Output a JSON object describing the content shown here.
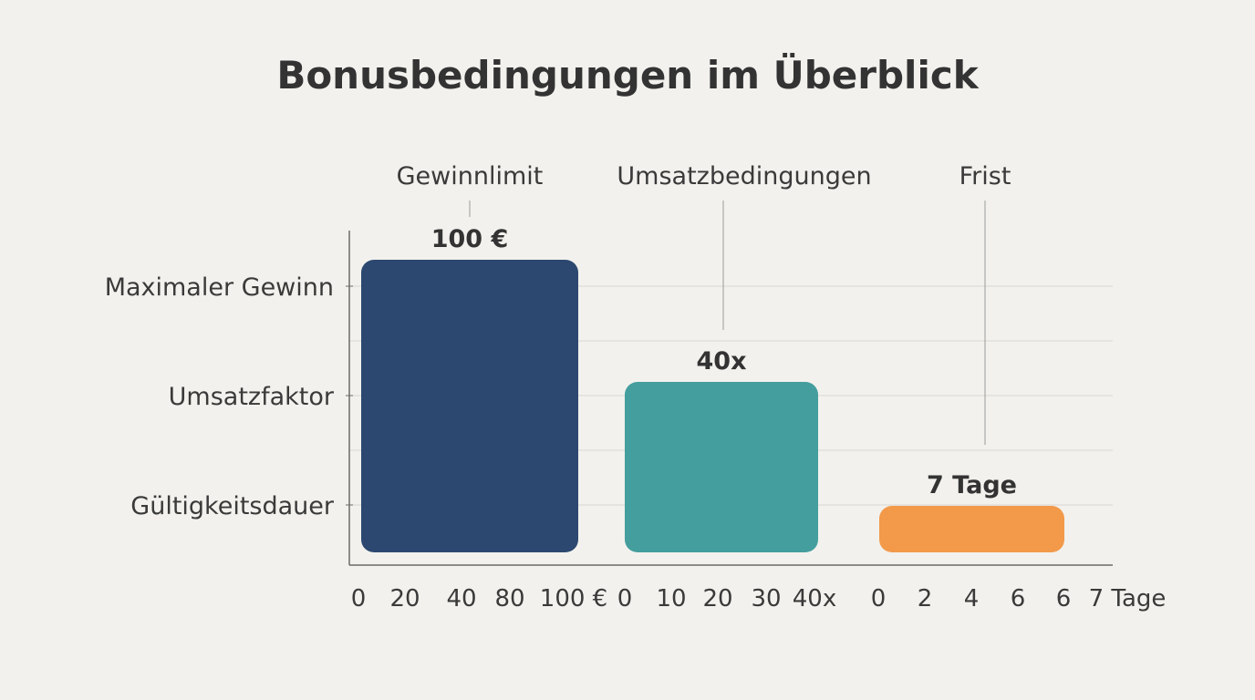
{
  "title": "Bonusbedingungen im Überblick",
  "chart_data": {
    "type": "bar",
    "title": "Bonusbedingungen im Überblick",
    "row_labels": [
      "Maximaler Gewinn",
      "Umsatzfaktor",
      "Gültigkeitsdauer"
    ],
    "grid": true,
    "bars": [
      {
        "category": "Gewinnlimit",
        "value": 100,
        "value_label": "100 €",
        "color": "#2c4870",
        "ticks": [
          "0",
          "20",
          "40",
          "80",
          "100 €"
        ]
      },
      {
        "category": "Umsatzbedingungen",
        "value": 40,
        "value_label": "40x",
        "color": "#449e9e",
        "ticks": [
          "0",
          "10",
          "20",
          "30",
          "40x"
        ]
      },
      {
        "category": "Frist",
        "value": 7,
        "value_label": "7 Tage",
        "color": "#f2994a",
        "ticks": [
          "0",
          "2",
          "4",
          "6",
          "6",
          "7 Tage"
        ]
      }
    ]
  }
}
